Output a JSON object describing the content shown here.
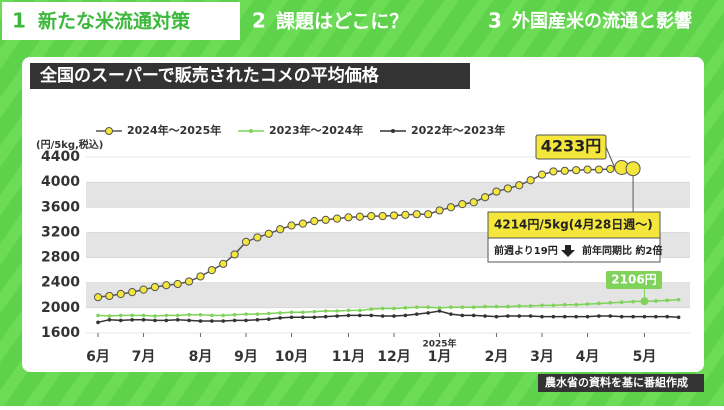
{
  "tabs": [
    {
      "num": "1",
      "label": "新たな米流通対策"
    },
    {
      "num": "2",
      "label": "課題はどこに？"
    },
    {
      "num": "3",
      "label": "外国産米の流通と影響"
    }
  ],
  "source": "農水省の資料を基に番組作成",
  "chart_data": {
    "type": "line",
    "title": "全国のスーパーで販売されたコメの平均価格",
    "y_label": "(円/5kg,税込)",
    "ylim": [
      1600,
      4400
    ],
    "yticks": [
      1600,
      2000,
      2400,
      2800,
      3200,
      3600,
      4000,
      4400
    ],
    "xlim": [
      -0.5,
      52.5
    ],
    "xticks": [
      {
        "value": 0,
        "label": "6月"
      },
      {
        "value": 4,
        "label": "7月"
      },
      {
        "value": 9,
        "label": "8月"
      },
      {
        "value": 13,
        "label": "9月"
      },
      {
        "value": 17,
        "label": "10月"
      },
      {
        "value": 22,
        "label": "11月"
      },
      {
        "value": 26,
        "label": "12月"
      },
      {
        "value": 30,
        "label": "1月"
      },
      {
        "value": 35,
        "label": "2月"
      },
      {
        "value": 39,
        "label": "3月"
      },
      {
        "value": 43,
        "label": "4月"
      },
      {
        "value": 48,
        "label": "5月"
      }
    ],
    "year_label": "2025年",
    "series": [
      {
        "name": "2024年～2025年",
        "color": "#f5e63c",
        "x": [
          0,
          1,
          2,
          3,
          4,
          5,
          6,
          7,
          8,
          9,
          10,
          11,
          12,
          13,
          14,
          15,
          16,
          17,
          18,
          19,
          20,
          21,
          22,
          23,
          24,
          25,
          26,
          27,
          28,
          29,
          30,
          31,
          32,
          33,
          34,
          35,
          36,
          37,
          38,
          39,
          40,
          41,
          42,
          43,
          44,
          45,
          46,
          47
        ],
        "values": [
          2170,
          2190,
          2220,
          2250,
          2290,
          2330,
          2360,
          2380,
          2420,
          2500,
          2600,
          2700,
          2850,
          3050,
          3120,
          3180,
          3250,
          3310,
          3340,
          3380,
          3400,
          3420,
          3440,
          3450,
          3460,
          3460,
          3470,
          3480,
          3490,
          3490,
          3550,
          3600,
          3650,
          3680,
          3760,
          3850,
          3900,
          3950,
          4030,
          4120,
          4170,
          4180,
          4190,
          4200,
          4200,
          4210,
          4233,
          4214
        ]
      },
      {
        "name": "2023年～2024年",
        "color": "#7fd35a",
        "x": [
          0,
          1,
          2,
          3,
          4,
          5,
          6,
          7,
          8,
          9,
          10,
          11,
          12,
          13,
          14,
          15,
          16,
          17,
          18,
          19,
          20,
          21,
          22,
          23,
          24,
          25,
          26,
          27,
          28,
          29,
          30,
          31,
          32,
          33,
          34,
          35,
          36,
          37,
          38,
          39,
          40,
          41,
          42,
          43,
          44,
          45,
          46,
          47,
          48,
          49,
          50,
          51
        ],
        "values": [
          1880,
          1870,
          1880,
          1880,
          1880,
          1870,
          1880,
          1880,
          1890,
          1890,
          1880,
          1880,
          1890,
          1900,
          1900,
          1910,
          1920,
          1930,
          1930,
          1940,
          1950,
          1950,
          1960,
          1960,
          1980,
          1990,
          1990,
          2000,
          2010,
          2010,
          2000,
          2010,
          2010,
          2010,
          2020,
          2020,
          2020,
          2030,
          2030,
          2040,
          2040,
          2050,
          2050,
          2060,
          2070,
          2080,
          2090,
          2100,
          2106,
          2110,
          2120,
          2130
        ]
      },
      {
        "name": "2022年～2023年",
        "color": "#333333",
        "x": [
          0,
          1,
          2,
          3,
          4,
          5,
          6,
          7,
          8,
          9,
          10,
          11,
          12,
          13,
          14,
          15,
          16,
          17,
          18,
          19,
          20,
          21,
          22,
          23,
          24,
          25,
          26,
          27,
          28,
          29,
          30,
          31,
          32,
          33,
          34,
          35,
          36,
          37,
          38,
          39,
          40,
          41,
          42,
          43,
          44,
          45,
          46,
          47,
          48,
          49,
          50,
          51
        ],
        "values": [
          1770,
          1810,
          1800,
          1810,
          1810,
          1800,
          1800,
          1810,
          1800,
          1790,
          1790,
          1790,
          1800,
          1800,
          1810,
          1820,
          1840,
          1850,
          1850,
          1850,
          1860,
          1870,
          1880,
          1880,
          1880,
          1870,
          1870,
          1880,
          1900,
          1920,
          1950,
          1900,
          1880,
          1880,
          1870,
          1860,
          1870,
          1870,
          1870,
          1860,
          1860,
          1860,
          1860,
          1860,
          1870,
          1870,
          1860,
          1860,
          1860,
          1860,
          1860,
          1850
        ]
      }
    ],
    "annotations": {
      "peak": "4233円",
      "latest": "4214円/5kg(4月28日週～)",
      "weekly": "前週より19円",
      "yoy": "前年同期比 約2倍",
      "last_year": "2106円"
    }
  }
}
